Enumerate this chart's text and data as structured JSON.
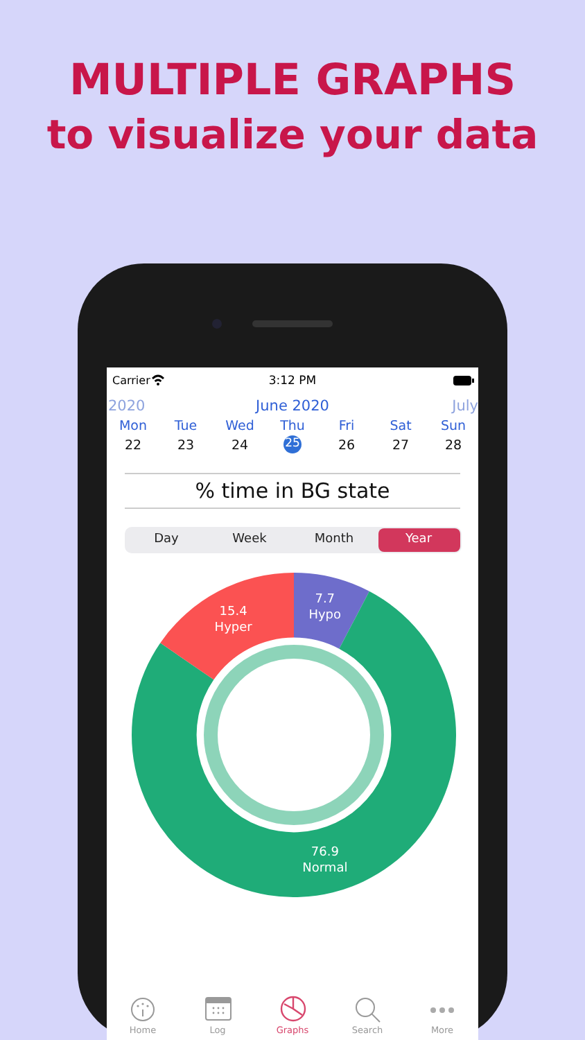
{
  "chart_data": {
    "type": "donut",
    "title": "% time in BG state",
    "categories": [
      "Hypo",
      "Normal",
      "Hyper"
    ],
    "values": [
      7.7,
      76.9,
      15.4
    ],
    "colors": [
      "#6e6dcb",
      "#1fac78",
      "#fb5252"
    ],
    "data_labels": true,
    "legend": false,
    "annotations": [
      "MULTIPLE GRAPHS",
      "to visualize your data",
      "Carrier",
      "3:12 PM",
      "2020",
      "June 2020",
      "July",
      "Mon",
      "Tue",
      "Wed",
      "Thu",
      "Fri",
      "Sat",
      "Sun",
      "22",
      "23",
      "24",
      "25",
      "26",
      "27",
      "28",
      "Day",
      "Week",
      "Month",
      "Year",
      "Home",
      "Log",
      "Graphs",
      "Search",
      "More"
    ]
  }
}
